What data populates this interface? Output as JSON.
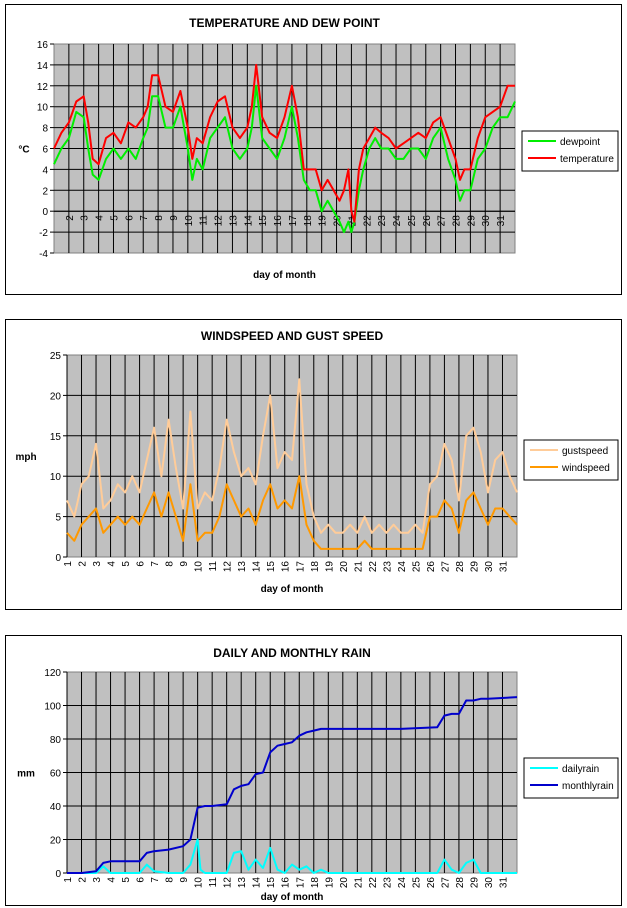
{
  "chart_data": [
    {
      "type": "line",
      "title": "TEMPERATURE AND DEW POINT",
      "xlabel": "day of month",
      "ylabel": "°C",
      "ylim": [
        -4,
        16
      ],
      "yticks": [
        -4,
        -2,
        0,
        2,
        4,
        6,
        8,
        10,
        12,
        14,
        16
      ],
      "xlim": [
        1,
        32
      ],
      "categories": [
        "2",
        "3",
        "4",
        "5",
        "6",
        "7",
        "8",
        "9",
        "10",
        "11",
        "12",
        "13",
        "14",
        "15",
        "16",
        "17",
        "18",
        "19",
        "20",
        "21",
        "22",
        "23",
        "24",
        "25",
        "26",
        "27",
        "28",
        "29",
        "30",
        "31"
      ],
      "grid": true,
      "legend_position": "right",
      "series": [
        {
          "name": "dewpoint",
          "color": "#00ee00",
          "x": [
            1,
            1.5,
            2,
            2.5,
            3,
            3.3,
            3.6,
            4,
            4.5,
            5,
            5.5,
            6,
            6.5,
            7,
            7.3,
            7.6,
            8,
            8.5,
            9,
            9.5,
            10,
            10.3,
            10.6,
            11,
            11.5,
            12,
            12.5,
            13,
            13.5,
            14,
            14.3,
            14.6,
            15,
            15.5,
            16,
            16.5,
            17,
            17.4,
            17.8,
            18.2,
            18.6,
            19,
            19.4,
            19.8,
            20.2,
            20.5,
            20.8,
            21,
            21.2,
            21.5,
            21.8,
            22.2,
            22.6,
            23,
            23.5,
            24,
            24.5,
            25,
            25.5,
            26,
            26.5,
            27,
            27.5,
            28,
            28.3,
            28.6,
            29,
            29.5,
            30,
            30.5,
            31,
            31.5,
            32
          ],
          "values": [
            4.5,
            6,
            7,
            9.5,
            9,
            6,
            3.5,
            3,
            5,
            6,
            5,
            6,
            5,
            7,
            8,
            11,
            11,
            8,
            8,
            10,
            6,
            3,
            5,
            4,
            7,
            8,
            9,
            6,
            5,
            6,
            8,
            12,
            7,
            6,
            5,
            7,
            10,
            7,
            3,
            2,
            2,
            0,
            1,
            0,
            -1,
            -2,
            -1,
            -2,
            -1,
            2,
            4,
            6,
            7,
            6,
            6,
            5,
            5,
            6,
            6,
            5,
            7,
            8,
            5,
            3,
            1,
            2,
            2,
            5,
            6,
            8,
            9,
            9,
            10.5
          ]
        },
        {
          "name": "temperature",
          "color": "#ff0000",
          "x": [
            1,
            1.5,
            2,
            2.5,
            3,
            3.3,
            3.6,
            4,
            4.5,
            5,
            5.5,
            6,
            6.5,
            7,
            7.3,
            7.6,
            8,
            8.5,
            9,
            9.5,
            10,
            10.3,
            10.6,
            11,
            11.5,
            12,
            12.5,
            13,
            13.5,
            14,
            14.3,
            14.6,
            15,
            15.5,
            16,
            16.5,
            17,
            17.4,
            17.8,
            18.2,
            18.6,
            19,
            19.4,
            19.8,
            20.2,
            20.5,
            20.8,
            21,
            21.2,
            21.5,
            21.8,
            22.2,
            22.6,
            23,
            23.5,
            24,
            24.5,
            25,
            25.5,
            26,
            26.5,
            27,
            27.5,
            28,
            28.3,
            28.6,
            29,
            29.5,
            30,
            30.5,
            31,
            31.5,
            32
          ],
          "values": [
            6,
            7.5,
            8.5,
            10.5,
            11,
            8.5,
            5,
            4.5,
            7,
            7.5,
            6.5,
            8.5,
            8,
            9,
            10,
            13,
            13,
            10,
            9.5,
            11.5,
            8,
            5,
            7,
            6.5,
            9,
            10.5,
            11,
            8,
            7,
            8,
            10,
            14,
            9,
            7.5,
            7,
            9,
            12,
            9,
            4,
            4,
            4,
            2,
            3,
            2,
            1,
            2,
            4,
            0,
            -1,
            4,
            6,
            7,
            8,
            7.5,
            7,
            6,
            6.5,
            7,
            7.5,
            7,
            8.5,
            9,
            7,
            5,
            3,
            4,
            4,
            7,
            9,
            9.5,
            10,
            12,
            12
          ]
        }
      ]
    },
    {
      "type": "line",
      "title": "WINDSPEED AND GUST SPEED",
      "xlabel": "day of month",
      "ylabel": "mph",
      "ylim": [
        0,
        25
      ],
      "yticks": [
        0,
        5,
        10,
        15,
        20,
        25
      ],
      "xlim": [
        1,
        32
      ],
      "categories": [
        "1",
        "2",
        "3",
        "4",
        "5",
        "6",
        "7",
        "8",
        "9",
        "10",
        "11",
        "12",
        "13",
        "14",
        "15",
        "16",
        "17",
        "18",
        "19",
        "20",
        "21",
        "22",
        "23",
        "24",
        "25",
        "26",
        "27",
        "28",
        "29",
        "30",
        "31"
      ],
      "grid": true,
      "legend_position": "right",
      "series": [
        {
          "name": "gustspeed",
          "color": "#ffcc99",
          "x": [
            1,
            1.5,
            2,
            2.5,
            3,
            3.5,
            4,
            4.5,
            5,
            5.5,
            6,
            6.5,
            7,
            7.5,
            8,
            8.5,
            9,
            9.5,
            10,
            10.5,
            11,
            11.5,
            12,
            12.5,
            13,
            13.5,
            14,
            14.5,
            15,
            15.5,
            16,
            16.5,
            17,
            17.5,
            18,
            18.5,
            19,
            19.5,
            20,
            20.5,
            21,
            21.5,
            22,
            22.5,
            23,
            23.5,
            24,
            24.5,
            25,
            25.5,
            26,
            26.5,
            27,
            27.5,
            28,
            28.5,
            29,
            29.5,
            30,
            30.5,
            31,
            31.5,
            32
          ],
          "values": [
            7,
            5,
            9,
            10,
            14,
            6,
            7,
            9,
            8,
            10,
            8,
            12,
            16,
            10,
            17,
            11,
            6,
            18,
            6,
            8,
            7,
            11,
            17,
            13,
            10,
            11,
            9,
            15,
            20,
            11,
            13,
            12,
            22,
            9,
            5,
            3,
            4,
            3,
            3,
            4,
            3,
            5,
            3,
            4,
            3,
            4,
            3,
            3,
            4,
            3,
            9,
            10,
            14,
            12,
            7,
            15,
            16,
            13,
            8,
            12,
            13,
            10,
            8
          ]
        },
        {
          "name": "windspeed",
          "color": "#ff9900",
          "x": [
            1,
            1.5,
            2,
            2.5,
            3,
            3.5,
            4,
            4.5,
            5,
            5.5,
            6,
            6.5,
            7,
            7.5,
            8,
            8.5,
            9,
            9.5,
            10,
            10.5,
            11,
            11.5,
            12,
            12.5,
            13,
            13.5,
            14,
            14.5,
            15,
            15.5,
            16,
            16.5,
            17,
            17.5,
            18,
            18.5,
            19,
            19.5,
            20,
            20.5,
            21,
            21.5,
            22,
            22.5,
            23,
            23.5,
            24,
            24.5,
            25,
            25.5,
            26,
            26.5,
            27,
            27.5,
            28,
            28.5,
            29,
            29.5,
            30,
            30.5,
            31,
            31.5,
            32
          ],
          "values": [
            3,
            2,
            4,
            5,
            6,
            3,
            4,
            5,
            4,
            5,
            4,
            6,
            8,
            5,
            8,
            5,
            2,
            9,
            2,
            3,
            3,
            5,
            9,
            7,
            5,
            6,
            4,
            7,
            9,
            6,
            7,
            6,
            10,
            4,
            2,
            1,
            1,
            1,
            1,
            1,
            1,
            2,
            1,
            1,
            1,
            1,
            1,
            1,
            1,
            1,
            5,
            5,
            7,
            6,
            3,
            7,
            8,
            6,
            4,
            6,
            6,
            5,
            4
          ]
        }
      ]
    },
    {
      "type": "line",
      "title": "DAILY AND MONTHLY RAIN",
      "xlabel": "day of month",
      "ylabel": "mm",
      "ylim": [
        0,
        120
      ],
      "yticks": [
        0,
        20,
        40,
        60,
        80,
        100,
        120
      ],
      "xlim": [
        1,
        32
      ],
      "categories": [
        "1",
        "2",
        "3",
        "4",
        "5",
        "6",
        "7",
        "8",
        "9",
        "10",
        "11",
        "12",
        "13",
        "14",
        "15",
        "16",
        "17",
        "18",
        "19",
        "20",
        "21",
        "22",
        "23",
        "24",
        "25",
        "26",
        "27",
        "28",
        "29",
        "30",
        "31"
      ],
      "grid": true,
      "legend_position": "right",
      "series": [
        {
          "name": "dailyrain",
          "color": "#00ffff",
          "x": [
            1,
            2,
            3,
            3.5,
            4,
            6,
            6.5,
            7,
            8,
            9,
            9.5,
            10,
            10.2,
            10.5,
            11,
            12,
            12.5,
            13,
            13.5,
            14,
            14.5,
            15,
            15.5,
            16,
            16.5,
            17,
            17.5,
            18,
            18.5,
            19,
            21,
            24,
            26.5,
            27,
            27.5,
            28,
            28.5,
            29,
            29.5,
            30,
            32
          ],
          "values": [
            0,
            0,
            0,
            4,
            0,
            0,
            5,
            1,
            0,
            0,
            5,
            20,
            2,
            0,
            0,
            0,
            12,
            13,
            2,
            8,
            3,
            15,
            2,
            0,
            5,
            2,
            4,
            0,
            2,
            0,
            0,
            0,
            0,
            8,
            2,
            0,
            6,
            8,
            0,
            0,
            0
          ]
        },
        {
          "name": "monthlyrain",
          "color": "#0000cc",
          "x": [
            1,
            2,
            3,
            3.5,
            4,
            6,
            6.5,
            7,
            8,
            9,
            9.5,
            10,
            10.5,
            11,
            12,
            12.5,
            13,
            13.5,
            14,
            14.5,
            15,
            15.5,
            16,
            16.5,
            17,
            17.5,
            18,
            18.5,
            19,
            21,
            24,
            26.5,
            27,
            27.5,
            28,
            28.5,
            29,
            29.5,
            30,
            32
          ],
          "values": [
            0,
            0,
            1,
            6,
            7,
            7,
            12,
            13,
            14,
            16,
            20,
            39,
            40,
            40,
            41,
            50,
            52,
            53,
            59,
            60,
            72,
            76,
            77,
            78,
            82,
            84,
            85,
            86,
            86,
            86,
            86,
            87,
            94,
            95,
            95,
            103,
            103,
            104,
            104,
            105
          ]
        }
      ]
    }
  ]
}
